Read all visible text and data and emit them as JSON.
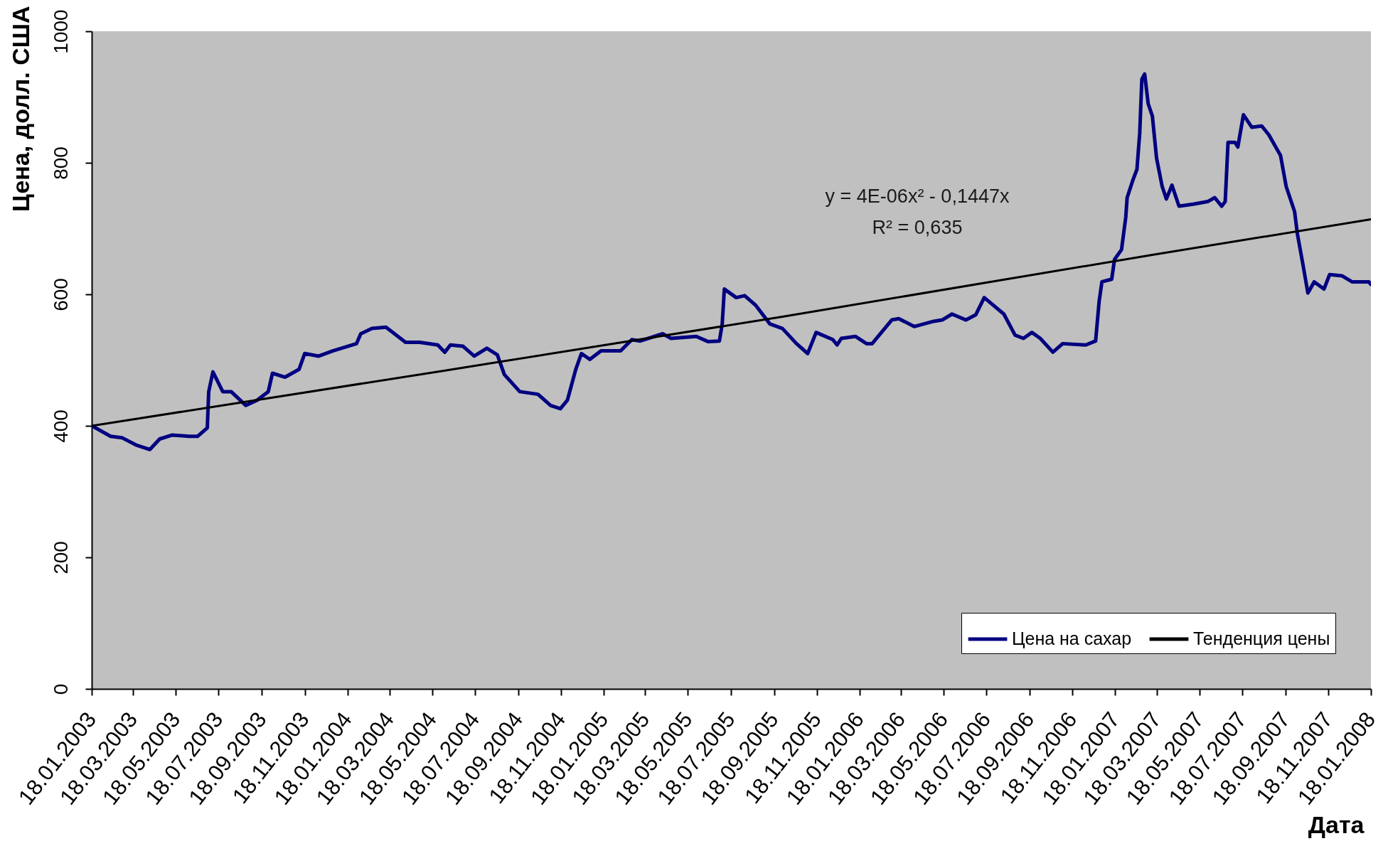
{
  "chart_data": {
    "type": "line",
    "xlabel": "Дата",
    "ylabel": "Цена, долл. США",
    "xlim": [
      "2003-01-18",
      "2008-01-18"
    ],
    "xticks": [
      {
        "value": "2003-01-18",
        "label": "18.01.2003"
      },
      {
        "value": "2003-03-18",
        "label": "18.03.2003"
      },
      {
        "value": "2003-05-18",
        "label": "18.05.2003"
      },
      {
        "value": "2003-07-18",
        "label": "18.07.2003"
      },
      {
        "value": "2003-09-18",
        "label": "18.09.2003"
      },
      {
        "value": "2003-11-18",
        "label": "18.11.2003"
      },
      {
        "value": "2004-01-18",
        "label": "18.01.2004"
      },
      {
        "value": "2004-03-18",
        "label": "18.03.2004"
      },
      {
        "value": "2004-05-18",
        "label": "18.05.2004"
      },
      {
        "value": "2004-07-18",
        "label": "18.07.2004"
      },
      {
        "value": "2004-09-18",
        "label": "18.09.2004"
      },
      {
        "value": "2004-11-18",
        "label": "18.11.2004"
      },
      {
        "value": "2005-01-18",
        "label": "18.01.2005"
      },
      {
        "value": "2005-03-18",
        "label": "18.03.2005"
      },
      {
        "value": "2005-05-18",
        "label": "18.05.2005"
      },
      {
        "value": "2005-07-18",
        "label": "18.07.2005"
      },
      {
        "value": "2005-09-18",
        "label": "18.09.2005"
      },
      {
        "value": "2005-11-18",
        "label": "18.11.2005"
      },
      {
        "value": "2006-01-18",
        "label": "18.01.2006"
      },
      {
        "value": "2006-03-18",
        "label": "18.03.2006"
      },
      {
        "value": "2006-05-18",
        "label": "18.05.2006"
      },
      {
        "value": "2006-07-18",
        "label": "18.07.2006"
      },
      {
        "value": "2006-09-18",
        "label": "18.09.2006"
      },
      {
        "value": "2006-11-18",
        "label": "18.11.2006"
      },
      {
        "value": "2007-01-18",
        "label": "18.01.2007"
      },
      {
        "value": "2007-03-18",
        "label": "18.03.2007"
      },
      {
        "value": "2007-05-18",
        "label": "18.05.2007"
      },
      {
        "value": "2007-07-18",
        "label": "18.07.2007"
      },
      {
        "value": "2007-09-18",
        "label": "18.09.2007"
      },
      {
        "value": "2007-11-18",
        "label": "18.11.2007"
      },
      {
        "value": "2008-01-18",
        "label": "18.01.2008"
      }
    ],
    "ylim": [
      0,
      1000
    ],
    "yticks": [
      0,
      200,
      400,
      600,
      800,
      1000
    ],
    "series": [
      {
        "name": "Цена на сахар",
        "color": "#000080",
        "x": [
          "2003-01-18",
          "2003-02-14",
          "2003-03-02",
          "2003-03-22",
          "2003-04-11",
          "2003-04-25",
          "2003-05-13",
          "2003-06-06",
          "2003-06-18",
          "2003-07-02",
          "2003-07-04",
          "2003-07-10",
          "2003-07-24",
          "2003-08-05",
          "2003-08-26",
          "2003-09-11",
          "2003-09-27",
          "2003-10-03",
          "2003-10-21",
          "2003-11-10",
          "2003-11-18",
          "2003-12-08",
          "2003-12-28",
          "2004-01-31",
          "2004-02-06",
          "2004-02-22",
          "2004-03-13",
          "2004-04-10",
          "2004-04-30",
          "2004-05-26",
          "2004-06-05",
          "2004-06-13",
          "2004-07-01",
          "2004-07-17",
          "2004-08-04",
          "2004-08-19",
          "2004-08-29",
          "2004-09-20",
          "2004-10-16",
          "2004-11-03",
          "2004-11-17",
          "2004-11-27",
          "2004-12-09",
          "2004-12-17",
          "2004-12-29",
          "2005-01-14",
          "2005-02-11",
          "2005-02-27",
          "2005-03-11",
          "2005-04-12",
          "2005-04-24",
          "2005-05-30",
          "2005-06-16",
          "2005-07-02",
          "2005-07-06",
          "2005-07-09",
          "2005-07-26",
          "2005-08-07",
          "2005-08-23",
          "2005-09-12",
          "2005-09-30",
          "2005-10-20",
          "2005-11-05",
          "2005-11-17",
          "2005-12-11",
          "2005-12-17",
          "2005-12-23",
          "2006-01-12",
          "2006-01-28",
          "2006-02-05",
          "2006-03-05",
          "2006-03-15",
          "2006-04-06",
          "2006-05-04",
          "2006-05-16",
          "2006-05-30",
          "2006-06-19",
          "2006-07-03",
          "2006-07-15",
          "2006-08-12",
          "2006-08-28",
          "2006-09-09",
          "2006-09-21",
          "2006-10-03",
          "2006-10-21",
          "2006-11-04",
          "2006-12-07",
          "2006-12-21",
          "2006-12-26",
          "2006-12-30",
          "2007-01-13",
          "2007-01-17",
          "2007-01-27",
          "2007-02-02",
          "2007-02-04",
          "2007-02-12",
          "2007-02-18",
          "2007-02-22",
          "2007-02-25",
          "2007-03-01",
          "2007-03-06",
          "2007-03-12",
          "2007-03-18",
          "2007-03-26",
          "2007-04-01",
          "2007-04-09",
          "2007-04-19",
          "2007-05-09",
          "2007-05-30",
          "2007-06-09",
          "2007-06-19",
          "2007-06-24",
          "2007-06-28",
          "2007-07-08",
          "2007-07-12",
          "2007-07-20",
          "2007-08-01",
          "2007-08-15",
          "2007-08-25",
          "2007-09-11",
          "2007-09-19",
          "2007-10-01",
          "2007-10-05",
          "2007-10-13",
          "2007-10-20",
          "2007-10-29",
          "2007-11-12",
          "2007-11-20",
          "2007-12-08",
          "2007-12-22",
          "2008-01-15",
          "2008-01-18"
        ],
        "values": [
          400,
          384,
          382,
          371,
          364,
          380,
          386,
          384,
          384,
          397,
          452,
          482,
          452,
          452,
          431,
          439,
          452,
          480,
          474,
          486,
          510,
          506,
          514,
          525,
          540,
          548,
          550,
          527,
          527,
          523,
          512,
          523,
          521,
          506,
          518,
          508,
          478,
          452,
          448,
          431,
          426,
          439,
          486,
          510,
          501,
          514,
          514,
          531,
          529,
          540,
          533,
          536,
          528,
          529,
          555,
          608,
          595,
          598,
          583,
          555,
          548,
          525,
          510,
          542,
          531,
          523,
          533,
          536,
          525,
          525,
          561,
          563,
          551,
          559,
          561,
          570,
          561,
          569,
          595,
          570,
          538,
          533,
          542,
          533,
          512,
          525,
          523,
          529,
          589,
          619,
          623,
          653,
          668,
          717,
          747,
          773,
          790,
          846,
          927,
          935,
          890,
          871,
          807,
          764,
          745,
          766,
          734,
          737,
          741,
          747,
          734,
          741,
          831,
          831,
          824,
          873,
          854,
          856,
          843,
          811,
          764,
          726,
          692,
          645,
          602,
          619,
          608,
          630,
          628,
          619,
          619,
          615
        ]
      },
      {
        "name": "Тенденция цены",
        "color": "#000000",
        "type": "line",
        "x": [
          "2003-01-18",
          "2004-05-30",
          "2005-09-30",
          "2007-03-12",
          "2008-01-18"
        ],
        "values": [
          400,
          483,
          566,
          660,
          714
        ]
      }
    ],
    "annotations": [
      "y = 4E-06x² - 0,1447x",
      "R² = 0,635"
    ],
    "legend": "bottom right"
  }
}
